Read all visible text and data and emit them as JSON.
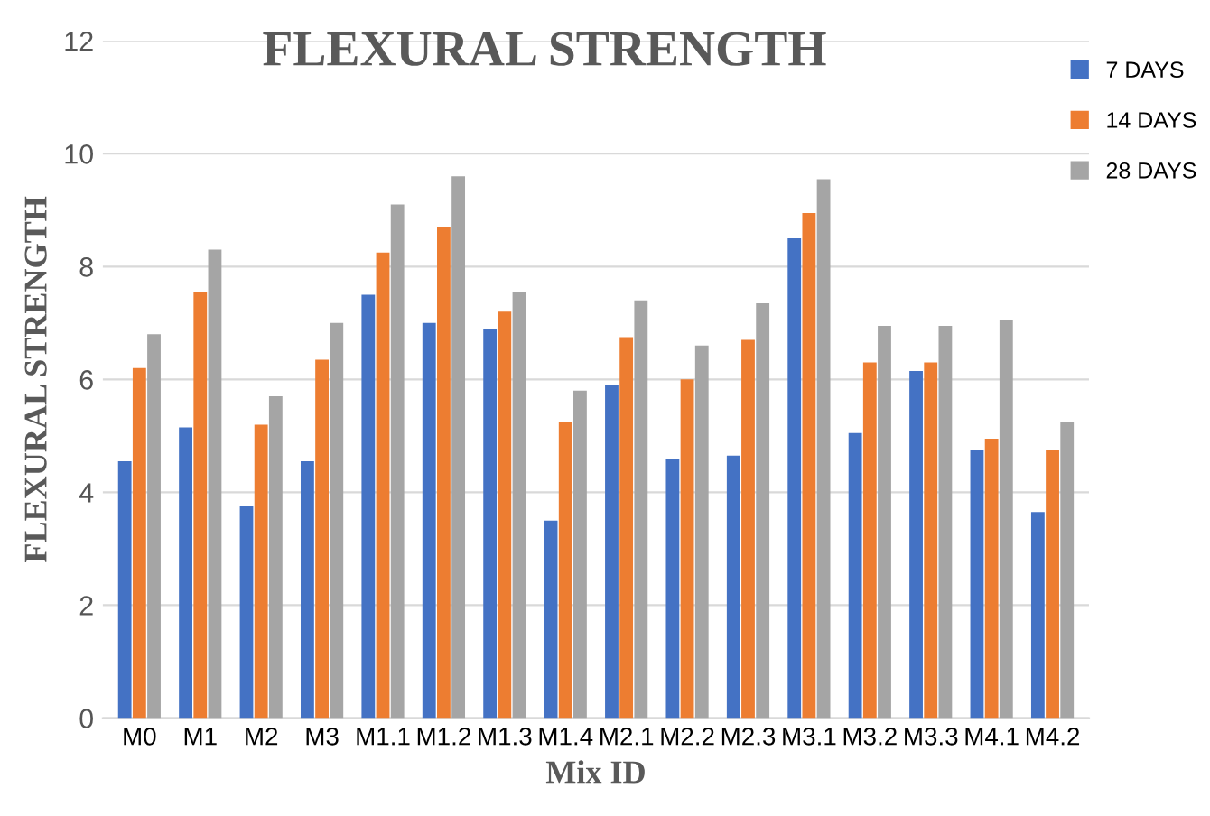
{
  "chart_data": {
    "type": "bar",
    "title": "FLEXURAL STRENGTH",
    "xlabel": "Mix ID",
    "ylabel": "FLEXURAL STRENGTH",
    "categories": [
      "M0",
      "M1",
      "M2",
      "M3",
      "M1.1",
      "M1.2",
      "M1.3",
      "M1.4",
      "M2.1",
      "M2.2",
      "M2.3",
      "M3.1",
      "M3.2",
      "M3.3",
      "M4.1",
      "M4.2"
    ],
    "series": [
      {
        "name": "7 DAYS",
        "color": "#4472c4",
        "values": [
          4.55,
          5.15,
          3.75,
          4.55,
          7.5,
          7.0,
          6.9,
          3.5,
          5.9,
          4.6,
          4.65,
          8.5,
          5.05,
          6.15,
          4.75,
          3.65
        ]
      },
      {
        "name": "14 DAYS",
        "color": "#ed7d31",
        "values": [
          6.2,
          7.55,
          5.2,
          6.35,
          8.25,
          8.7,
          7.2,
          5.25,
          6.75,
          6.0,
          6.7,
          8.95,
          6.3,
          6.3,
          4.95,
          4.75
        ]
      },
      {
        "name": "28 DAYS",
        "color": "#a5a5a5",
        "values": [
          6.8,
          8.3,
          5.7,
          7.0,
          9.1,
          9.6,
          7.55,
          5.8,
          7.4,
          6.6,
          7.35,
          9.55,
          6.95,
          6.95,
          7.05,
          5.25
        ]
      }
    ],
    "ylim": [
      0,
      12
    ],
    "yticks": [
      0,
      2,
      4,
      6,
      8,
      10,
      12
    ],
    "grid": "y",
    "legend": "top right"
  }
}
